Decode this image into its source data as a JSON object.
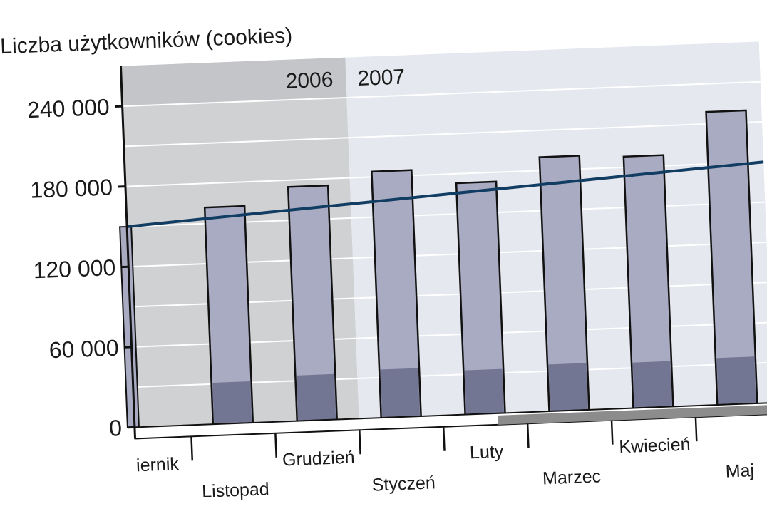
{
  "chart_data": {
    "type": "bar",
    "title": "Liczba użytkowników (cookies)",
    "xlabel": "",
    "ylabel": "",
    "categories": [
      "Październik",
      "Listopad",
      "Grudzień",
      "Styczeń",
      "Luty",
      "Marzec",
      "Kwiecień",
      "Maj"
    ],
    "category_labels": [
      "iernik",
      "Listopad",
      "Grudzień",
      "Styczeń",
      "Luty",
      "Marzec",
      "Kwiecień",
      "Maj"
    ],
    "series": [
      {
        "values": [
          150000,
          162000,
          175000,
          184000,
          173000,
          190000,
          188000,
          219000
        ]
      },
      {
        "values": [
          0,
          31000,
          34000,
          36000,
          33000,
          35000,
          34000,
          35000
        ]
      }
    ],
    "stacked": true,
    "trend_line": {
      "start": 150000,
      "end": 180000
    },
    "ylim": [
      0,
      270000
    ],
    "yticks": [
      0,
      60000,
      120000,
      180000,
      240000
    ],
    "ytick_labels": [
      "0",
      "60 000",
      "120 000",
      "180 000",
      "240 000"
    ],
    "year_labels": [
      "2006",
      "2007"
    ],
    "grid": true,
    "colors": {
      "bar_light": "#a9abc2",
      "bar_dark": "#737692",
      "trend": "#123d63",
      "band_2006": "#d0d1d3",
      "band_2007": "#e6e8ef",
      "scrollbar": "#8c8c8c"
    }
  }
}
